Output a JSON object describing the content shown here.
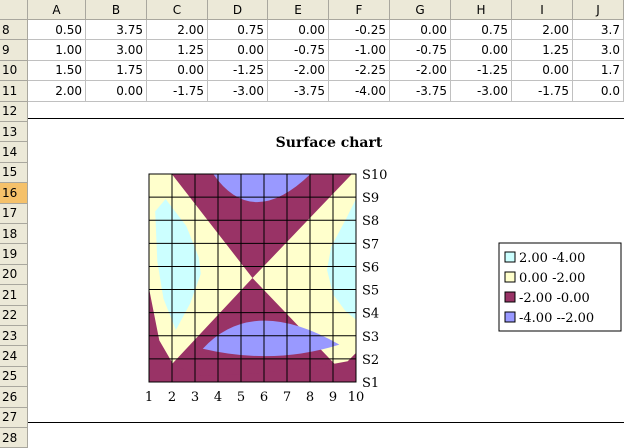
{
  "spreadsheet": {
    "columns": [
      "A",
      "B",
      "C",
      "D",
      "E",
      "F",
      "G",
      "H",
      "I",
      "J"
    ],
    "rows": [
      {
        "num": "8",
        "cells": [
          "0.50",
          "3.75",
          "2.00",
          "0.75",
          "0.00",
          "-0.25",
          "0.00",
          "0.75",
          "2.00",
          "3.7"
        ]
      },
      {
        "num": "9",
        "cells": [
          "1.00",
          "3.00",
          "1.25",
          "0.00",
          "-0.75",
          "-1.00",
          "-0.75",
          "0.00",
          "1.25",
          "3.0"
        ]
      },
      {
        "num": "10",
        "cells": [
          "1.50",
          "1.75",
          "0.00",
          "-1.25",
          "-2.00",
          "-2.25",
          "-2.00",
          "-1.25",
          "0.00",
          "1.7"
        ]
      },
      {
        "num": "11",
        "cells": [
          "2.00",
          "0.00",
          "-1.75",
          "-3.00",
          "-3.75",
          "-4.00",
          "-3.75",
          "-3.00",
          "-1.75",
          "0.0"
        ]
      }
    ],
    "empty_rows": [
      "12",
      "13",
      "14",
      "15",
      "16",
      "17",
      "18",
      "19",
      "20",
      "21",
      "22",
      "23",
      "24",
      "25",
      "26",
      "27",
      "28"
    ],
    "active_row": "16"
  },
  "chart_data": {
    "type": "heatmap",
    "title": "Surface chart",
    "x_ticks": [
      "1",
      "2",
      "3",
      "4",
      "5",
      "6",
      "7",
      "8",
      "9",
      "10"
    ],
    "series_ticks": [
      "S1",
      "S2",
      "S3",
      "S4",
      "S5",
      "S6",
      "S7",
      "S8",
      "S9",
      "S10"
    ],
    "legend": [
      {
        "label": "2.00 -4.00",
        "color": "#ccffff"
      },
      {
        "label": "0.00 -2.00",
        "color": "#ffffcc"
      },
      {
        "label": "-2.00 -0.00",
        "color": "#993366"
      },
      {
        "label": "-4.00 --2.00",
        "color": "#9999ff"
      }
    ],
    "legend_position": "right",
    "grid": true
  }
}
